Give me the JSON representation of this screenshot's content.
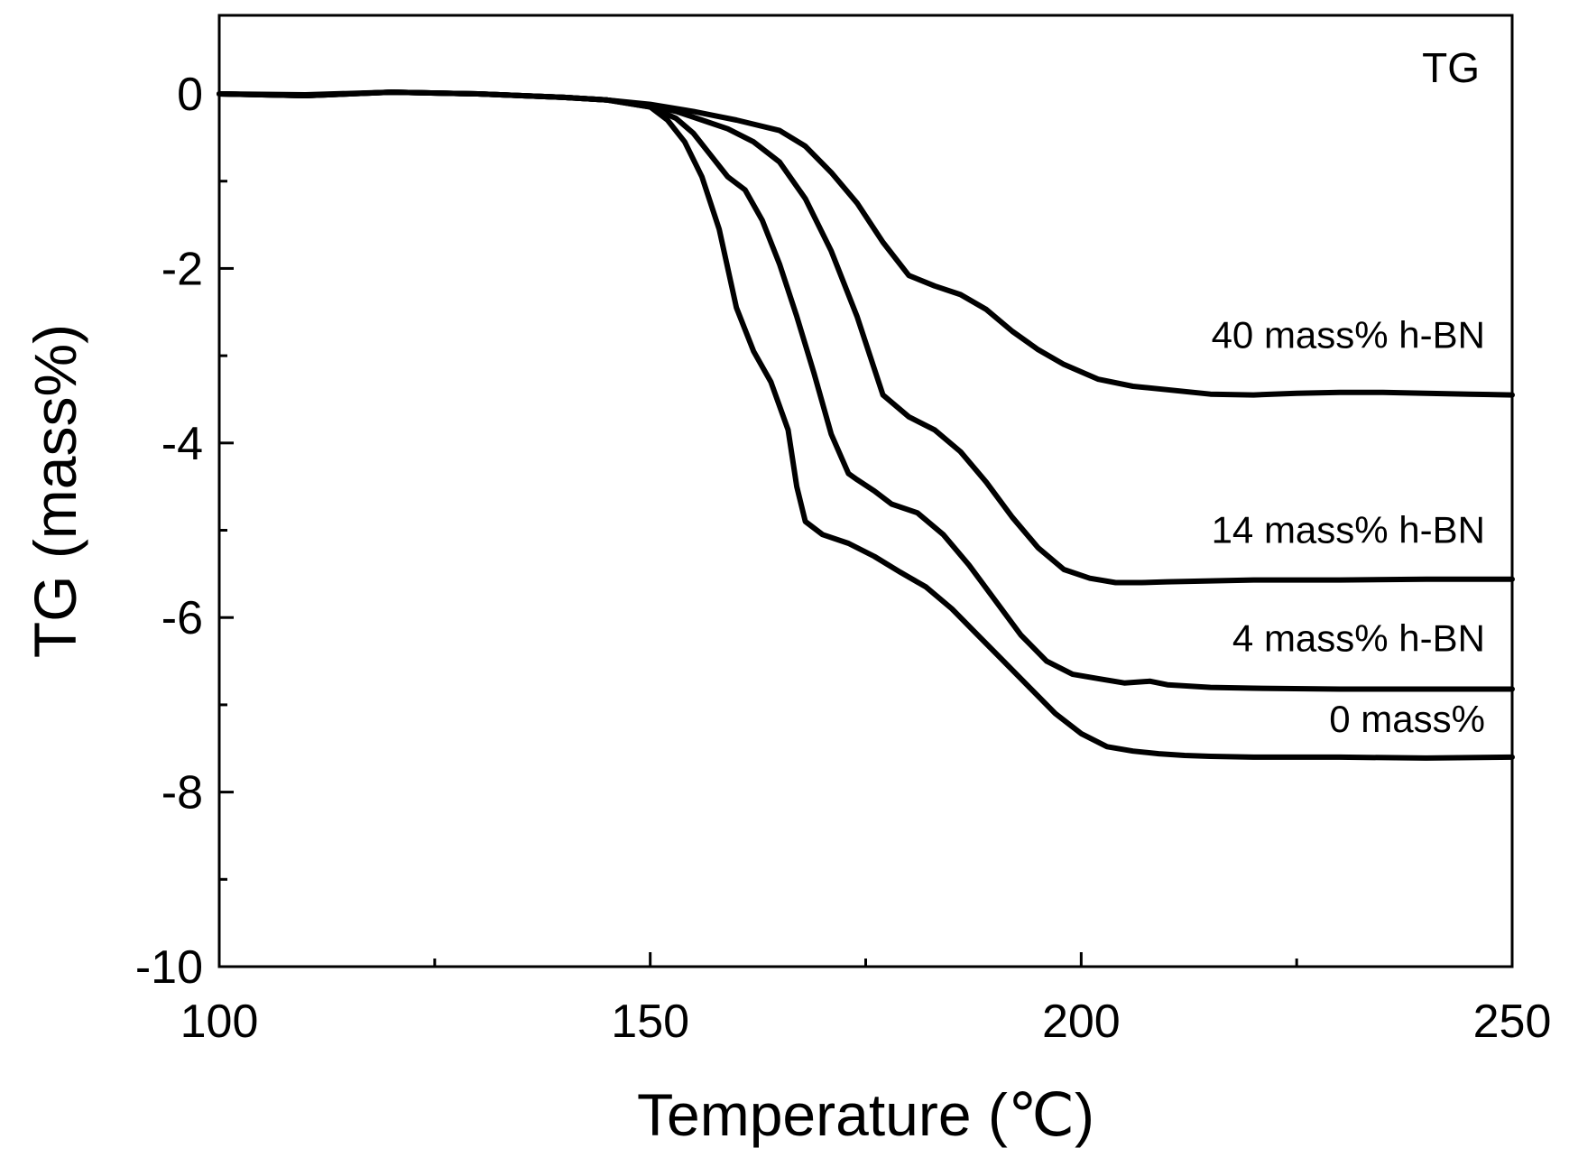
{
  "chart_data": {
    "type": "line",
    "title": "",
    "panel_label": "TG",
    "xlabel": "Temperature (℃)",
    "ylabel": "TG (mass%)",
    "xlim": [
      100,
      250
    ],
    "ylim": [
      -10,
      0.9
    ],
    "x_ticks": [
      100,
      150,
      200,
      250
    ],
    "x_tick_labels": [
      "100",
      "150",
      "200",
      "250"
    ],
    "x_minor_ticks": [
      125,
      175,
      225
    ],
    "y_ticks": [
      0,
      -2,
      -4,
      -6,
      -8,
      -10
    ],
    "y_tick_labels": [
      "0",
      "-2",
      "-4",
      "-6",
      "-8",
      "-10"
    ],
    "y_minor_ticks": [
      -1,
      -3,
      -5,
      -7,
      -9
    ],
    "grid": false,
    "series": [
      {
        "name": "40 mass% h-BN",
        "label": "40 mass% h-BN",
        "color": "#000000",
        "x": [
          100,
          110,
          120,
          130,
          140,
          145,
          150,
          155,
          160,
          165,
          168,
          171,
          174,
          177,
          180,
          183,
          186,
          189,
          192,
          195,
          198,
          202,
          206,
          210,
          215,
          220,
          225,
          230,
          235,
          240,
          245,
          250
        ],
        "y": [
          0.0,
          -0.02,
          0.02,
          0.0,
          -0.04,
          -0.07,
          -0.12,
          -0.2,
          -0.3,
          -0.42,
          -0.6,
          -0.9,
          -1.25,
          -1.7,
          -2.08,
          -2.2,
          -2.3,
          -2.47,
          -2.72,
          -2.93,
          -3.1,
          -3.27,
          -3.35,
          -3.39,
          -3.44,
          -3.45,
          -3.43,
          -3.42,
          -3.42,
          -3.43,
          -3.44,
          -3.45
        ]
      },
      {
        "name": "14 mass% h-BN",
        "label": "14 mass% h-BN",
        "color": "#000000",
        "x": [
          100,
          110,
          120,
          130,
          140,
          145,
          150,
          153,
          156,
          159,
          162,
          165,
          168,
          171,
          174,
          177,
          180,
          183,
          186,
          189,
          192,
          195,
          198,
          201,
          204,
          207,
          210,
          215,
          220,
          230,
          240,
          250
        ],
        "y": [
          0.0,
          -0.01,
          0.02,
          0.0,
          -0.04,
          -0.07,
          -0.13,
          -0.2,
          -0.3,
          -0.4,
          -0.55,
          -0.78,
          -1.2,
          -1.8,
          -2.55,
          -3.45,
          -3.7,
          -3.85,
          -4.1,
          -4.45,
          -4.85,
          -5.2,
          -5.45,
          -5.55,
          -5.6,
          -5.6,
          -5.59,
          -5.58,
          -5.57,
          -5.57,
          -5.56,
          -5.56
        ]
      },
      {
        "name": "4 mass% h-BN",
        "label": "4 mass% h-BN",
        "color": "#000000",
        "x": [
          100,
          110,
          120,
          130,
          140,
          145,
          150,
          153,
          155,
          157,
          159,
          161,
          163,
          165,
          167,
          169,
          171,
          173,
          174,
          176,
          178,
          181,
          184,
          187,
          190,
          193,
          196,
          199,
          202,
          205,
          208,
          210,
          215,
          220,
          230,
          240,
          250
        ],
        "y": [
          0.0,
          -0.02,
          0.02,
          0.0,
          -0.04,
          -0.07,
          -0.15,
          -0.28,
          -0.45,
          -0.7,
          -0.95,
          -1.1,
          -1.45,
          -1.95,
          -2.55,
          -3.2,
          -3.9,
          -4.35,
          -4.42,
          -4.55,
          -4.7,
          -4.8,
          -5.05,
          -5.4,
          -5.8,
          -6.2,
          -6.5,
          -6.65,
          -6.7,
          -6.75,
          -6.73,
          -6.77,
          -6.8,
          -6.81,
          -6.82,
          -6.82,
          -6.82
        ]
      },
      {
        "name": "0 mass%",
        "label": "0 mass%",
        "color": "#000000",
        "x": [
          100,
          110,
          120,
          130,
          140,
          145,
          150,
          152,
          154,
          156,
          158,
          160,
          162,
          164,
          166,
          167,
          168,
          170,
          173,
          176,
          179,
          182,
          185,
          188,
          191,
          194,
          197,
          200,
          203,
          206,
          209,
          212,
          215,
          220,
          230,
          240,
          250
        ],
        "y": [
          0.0,
          -0.02,
          0.02,
          0.0,
          -0.04,
          -0.07,
          -0.15,
          -0.3,
          -0.55,
          -0.95,
          -1.55,
          -2.45,
          -2.95,
          -3.3,
          -3.85,
          -4.5,
          -4.9,
          -5.05,
          -5.15,
          -5.3,
          -5.48,
          -5.65,
          -5.9,
          -6.2,
          -6.5,
          -6.8,
          -7.1,
          -7.33,
          -7.48,
          -7.53,
          -7.56,
          -7.58,
          -7.59,
          -7.6,
          -7.6,
          -7.61,
          -7.6
        ]
      }
    ]
  }
}
